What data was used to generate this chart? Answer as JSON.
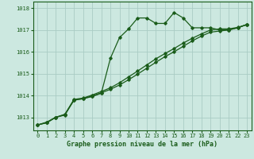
{
  "background_color": "#cce8e0",
  "grid_color": "#aaccc4",
  "line_color": "#1a5c1a",
  "title": "Graphe pression niveau de la mer (hPa)",
  "xlim": [
    -0.5,
    23.5
  ],
  "ylim": [
    1012.4,
    1018.3
  ],
  "yticks": [
    1013,
    1014,
    1015,
    1016,
    1017,
    1018
  ],
  "xticks": [
    0,
    1,
    2,
    3,
    4,
    5,
    6,
    7,
    8,
    9,
    10,
    11,
    12,
    13,
    14,
    15,
    16,
    17,
    18,
    19,
    20,
    21,
    22,
    23
  ],
  "series1_x": [
    0,
    1,
    2,
    3,
    4,
    5,
    6,
    7,
    8,
    9,
    10,
    11,
    12,
    13,
    14,
    15,
    16,
    17,
    18,
    19,
    20,
    21,
    22,
    23
  ],
  "series1_y": [
    1012.65,
    1012.78,
    1013.0,
    1013.1,
    1013.8,
    1013.85,
    1013.95,
    1014.1,
    1015.7,
    1016.65,
    1017.05,
    1017.55,
    1017.55,
    1017.3,
    1017.3,
    1017.8,
    1017.55,
    1017.1,
    1017.1,
    1017.1,
    1017.0,
    1017.0,
    1017.1,
    1017.25
  ],
  "series2_x": [
    0,
    1,
    2,
    3,
    4,
    5,
    6,
    7,
    8,
    9,
    10,
    11,
    12,
    13,
    14,
    15,
    16,
    17,
    18,
    19,
    20,
    21,
    22,
    23
  ],
  "series2_y": [
    1012.65,
    1012.75,
    1013.0,
    1013.12,
    1013.78,
    1013.85,
    1013.98,
    1014.12,
    1014.28,
    1014.48,
    1014.72,
    1014.98,
    1015.25,
    1015.52,
    1015.78,
    1016.0,
    1016.25,
    1016.5,
    1016.72,
    1016.9,
    1016.95,
    1017.0,
    1017.1,
    1017.25
  ],
  "series3_x": [
    0,
    1,
    2,
    3,
    4,
    5,
    6,
    7,
    8,
    9,
    10,
    11,
    12,
    13,
    14,
    15,
    16,
    17,
    18,
    19,
    20,
    21,
    22,
    23
  ],
  "series3_y": [
    1012.65,
    1012.75,
    1013.0,
    1013.14,
    1013.82,
    1013.88,
    1014.02,
    1014.18,
    1014.35,
    1014.58,
    1014.85,
    1015.12,
    1015.4,
    1015.68,
    1015.92,
    1016.15,
    1016.4,
    1016.62,
    1016.82,
    1017.0,
    1017.05,
    1017.05,
    1017.12,
    1017.25
  ]
}
